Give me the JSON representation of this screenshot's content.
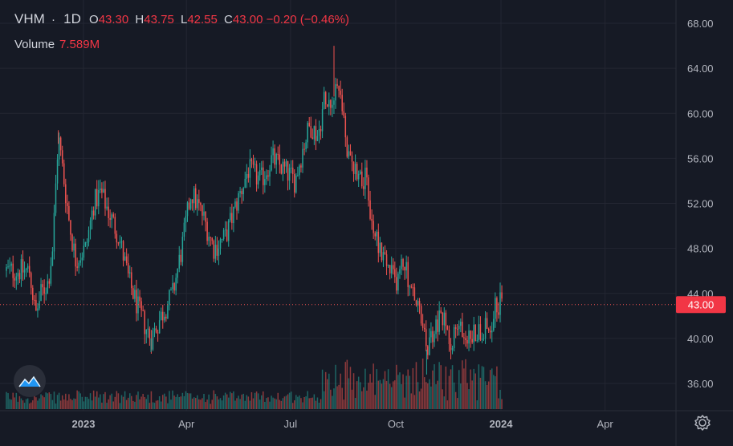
{
  "legend": {
    "symbol": "VHM",
    "separator": "·",
    "interval": "1D",
    "open_label": "O",
    "open": "43.30",
    "high_label": "H",
    "high": "43.75",
    "low_label": "L",
    "low": "42.55",
    "close_label": "C",
    "close": "43.00",
    "change": "−0.20 (−0.46%)"
  },
  "volume": {
    "label": "Volume",
    "value": "7.589M"
  },
  "last_price_label": "43.00",
  "colors": {
    "up": "#26a69a",
    "down": "#ef5350",
    "background": "#161a25",
    "grid": "#232632",
    "axis_text": "#b2b5be"
  },
  "icons": {
    "logo": "tradingview-cloud-icon",
    "settings": "gear-icon"
  },
  "chart_data": {
    "type": "candlestick",
    "symbol": "VHM",
    "interval": "1D",
    "y_axis": {
      "ticks": [
        36,
        40,
        44,
        48,
        52,
        56,
        60,
        64,
        68
      ],
      "range": [
        35,
        69
      ]
    },
    "x_axis": {
      "labels": [
        "2023",
        "Apr",
        "Jul",
        "Oct",
        "2024",
        "Apr"
      ]
    },
    "last_price": 43.0,
    "path_points": [
      [
        "2022-11-15",
        46
      ],
      [
        "2022-11-20",
        42
      ],
      [
        "2022-11-25",
        44
      ],
      [
        "2022-12-01",
        45
      ],
      [
        "2022-12-05",
        48
      ],
      [
        "2022-12-10",
        58
      ],
      [
        "2022-12-15",
        54
      ],
      [
        "2022-12-20",
        50
      ],
      [
        "2022-12-25",
        47
      ],
      [
        "2023-01-03",
        48
      ],
      [
        "2023-01-10",
        52
      ],
      [
        "2023-01-16",
        53
      ],
      [
        "2023-02-01",
        49
      ],
      [
        "2023-02-10",
        45
      ],
      [
        "2023-02-20",
        42
      ],
      [
        "2023-03-01",
        40
      ],
      [
        "2023-03-10",
        42
      ],
      [
        "2023-03-20",
        44
      ],
      [
        "2023-03-28",
        48
      ],
      [
        "2023-04-05",
        53
      ],
      [
        "2023-04-15",
        51
      ],
      [
        "2023-04-25",
        48
      ],
      [
        "2023-05-05",
        49
      ],
      [
        "2023-05-15",
        52
      ],
      [
        "2023-05-25",
        55
      ],
      [
        "2023-06-05",
        54
      ],
      [
        "2023-06-15",
        56
      ],
      [
        "2023-06-25",
        55
      ],
      [
        "2023-07-05",
        54
      ],
      [
        "2023-07-12",
        57
      ],
      [
        "2023-07-18",
        59
      ],
      [
        "2023-07-25",
        58
      ],
      [
        "2023-08-01",
        62
      ],
      [
        "2023-08-05",
        61
      ],
      [
        "2023-08-10",
        63
      ],
      [
        "2023-08-15",
        61
      ],
      [
        "2023-08-20",
        56
      ],
      [
        "2023-08-28",
        55
      ],
      [
        "2023-09-05",
        54
      ],
      [
        "2023-09-10",
        50
      ],
      [
        "2023-09-18",
        48
      ],
      [
        "2023-09-25",
        46
      ],
      [
        "2023-10-01",
        45
      ],
      [
        "2023-10-08",
        47
      ],
      [
        "2023-10-15",
        44
      ],
      [
        "2023-10-20",
        43
      ],
      [
        "2023-10-28",
        39
      ],
      [
        "2023-11-05",
        41
      ],
      [
        "2023-11-10",
        42
      ],
      [
        "2023-11-18",
        40
      ],
      [
        "2023-11-25",
        41
      ],
      [
        "2023-12-05",
        40
      ],
      [
        "2023-12-15",
        41
      ],
      [
        "2023-12-22",
        41
      ],
      [
        "2023-12-28",
        43
      ],
      [
        "2024-01-02",
        43
      ]
    ],
    "highlights": [
      {
        "date": "2022-12-10",
        "high": 58.5
      },
      {
        "date": "2023-03-01",
        "low": 39.5
      },
      {
        "date": "2023-08-08",
        "high": 66.0
      },
      {
        "date": "2023-10-28",
        "low": 37.5
      }
    ]
  }
}
